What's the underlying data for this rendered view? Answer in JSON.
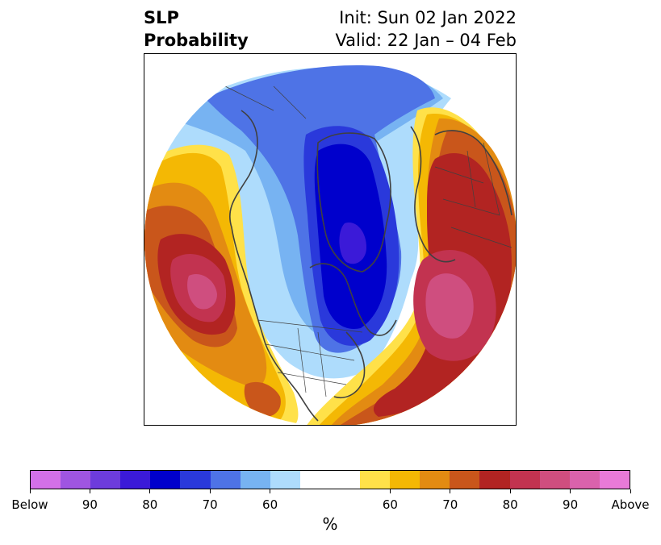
{
  "title": {
    "left_line1": "SLP",
    "left_line2": "Probability",
    "right_line1": "Init: Sun 02 Jan 2022",
    "right_line2": "Valid: 22 Jan – 04 Feb"
  },
  "map": {
    "projection": "north-polar-stereographic",
    "field": "probability",
    "zones": [
      {
        "category": "below",
        "level": 60,
        "color": "#aedcfc"
      },
      {
        "category": "below",
        "level": 65,
        "color": "#77b3f2"
      },
      {
        "category": "below",
        "level": 70,
        "color": "#4e73e6"
      },
      {
        "category": "below",
        "level": 75,
        "color": "#2a39db"
      },
      {
        "category": "below",
        "level": 80,
        "color": "#0000cc"
      },
      {
        "category": "below",
        "level": 85,
        "color": "#3b1ad8"
      },
      {
        "category": "above",
        "level": 55,
        "color": "#ffe149"
      },
      {
        "category": "above",
        "level": 60,
        "color": "#f4b804"
      },
      {
        "category": "above",
        "level": 65,
        "color": "#e38b12"
      },
      {
        "category": "above",
        "level": 70,
        "color": "#c9561b"
      },
      {
        "category": "above",
        "level": 75,
        "color": "#b22422"
      },
      {
        "category": "above",
        "level": 80,
        "color": "#c23350"
      },
      {
        "category": "above",
        "level": 85,
        "color": "#cf4e7f"
      }
    ]
  },
  "colorbar": {
    "colors": [
      "#d370e8",
      "#9f55e1",
      "#6d3cdc",
      "#3b1ad8",
      "#0000cc",
      "#2a39db",
      "#4e73e6",
      "#77b3f2",
      "#aedcfc",
      "#ffffff",
      "#ffffff",
      "#ffe149",
      "#f4b804",
      "#e38b12",
      "#c9561b",
      "#b22422",
      "#c23350",
      "#cf4e7f",
      "#da62ac",
      "#e97ad8"
    ],
    "tick_labels": [
      "Below",
      "90",
      "80",
      "70",
      "60",
      "60",
      "70",
      "80",
      "90",
      "Above"
    ],
    "unit": "%"
  }
}
